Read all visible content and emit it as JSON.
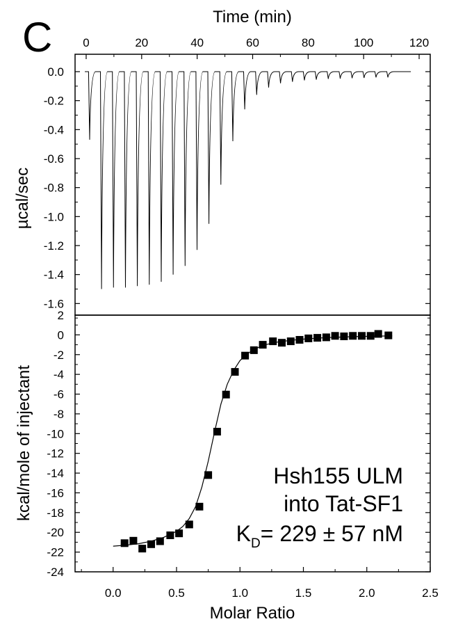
{
  "panel_label": "C",
  "chart_data": [
    {
      "type": "line",
      "panel": "top",
      "title": "",
      "xlabel": "Time (min)",
      "ylabel": "µcal/sec",
      "xlim": [
        -4,
        124
      ],
      "ylim": [
        -1.68,
        0.12
      ],
      "x_ticks": [
        0,
        20,
        40,
        60,
        80,
        100,
        120
      ],
      "y_ticks": [
        0.0,
        -0.2,
        -0.4,
        -0.6,
        -0.8,
        -1.0,
        -1.2,
        -1.4,
        -1.6
      ],
      "y_tick_labels": [
        "0.0",
        "-0.2",
        "-0.4",
        "-0.6",
        "-0.8",
        "-1.0",
        "-1.2",
        "-1.4",
        "-1.6"
      ],
      "grid": false,
      "baseline": 0.0,
      "trace_start": -0.5,
      "trace_end": 117,
      "injection_times": [
        1,
        5.3,
        9.6,
        13.9,
        18.2,
        22.5,
        26.8,
        31.1,
        35.4,
        39.7,
        44,
        48.3,
        52.6,
        56.9,
        61.2,
        65.5,
        69.8,
        74.1,
        78.4,
        82.7,
        87,
        91.3,
        95.6,
        99.9,
        104.2,
        108.5
      ],
      "peak_values": [
        -0.47,
        -1.5,
        -1.49,
        -1.49,
        -1.48,
        -1.47,
        -1.45,
        -1.4,
        -1.34,
        -1.23,
        -1.05,
        -0.78,
        -0.48,
        -0.26,
        -0.16,
        -0.11,
        -0.08,
        -0.07,
        -0.06,
        -0.055,
        -0.05,
        -0.048,
        -0.045,
        -0.043,
        -0.04,
        -0.04
      ]
    },
    {
      "type": "scatter",
      "panel": "bottom",
      "title": "",
      "xlabel": "Molar Ratio",
      "ylabel": "kcal/mole of injectant",
      "xlim": [
        -0.3,
        2.5
      ],
      "ylim": [
        -24,
        2
      ],
      "x_ticks": [
        0.0,
        0.5,
        1.0,
        1.5,
        2.0,
        2.5
      ],
      "x_tick_labels": [
        "0.0",
        "0.5",
        "1.0",
        "1.5",
        "2.0",
        "2.5"
      ],
      "y_ticks": [
        2,
        0,
        -2,
        -4,
        -6,
        -8,
        -10,
        -12,
        -14,
        -16,
        -18,
        -20,
        -22,
        -24
      ],
      "y_tick_labels": [
        "2",
        "0",
        "-2",
        "-4",
        "-6",
        "-8",
        "-10",
        "-12",
        "-14",
        "-16",
        "-18",
        "-20",
        "-22",
        "-24"
      ],
      "grid": false,
      "x": [
        0.09,
        0.16,
        0.23,
        0.3,
        0.37,
        0.45,
        0.52,
        0.6,
        0.68,
        0.75,
        0.82,
        0.89,
        0.96,
        1.04,
        1.11,
        1.18,
        1.26,
        1.33,
        1.4,
        1.47,
        1.54,
        1.61,
        1.68,
        1.75,
        1.82,
        1.89,
        1.96,
        2.03,
        2.09,
        2.17
      ],
      "y": [
        -21.1,
        -20.85,
        -21.65,
        -21.2,
        -20.9,
        -20.3,
        -20.1,
        -19.2,
        -17.4,
        -14.2,
        -9.8,
        -6.05,
        -3.75,
        -2.1,
        -1.55,
        -1.0,
        -0.65,
        -0.8,
        -0.65,
        -0.5,
        -0.35,
        -0.3,
        -0.25,
        -0.1,
        -0.15,
        -0.1,
        -0.1,
        -0.1,
        0.1,
        -0.05
      ],
      "fit_x": [
        0.0,
        0.1,
        0.2,
        0.3,
        0.4,
        0.5,
        0.55,
        0.6,
        0.65,
        0.7,
        0.75,
        0.8,
        0.85,
        0.9,
        0.95,
        1.0,
        1.05,
        1.1,
        1.15,
        1.2,
        1.3,
        1.4,
        1.5,
        1.6,
        1.7,
        1.8,
        1.9,
        2.0,
        2.1,
        2.2
      ],
      "fit_y": [
        -21.4,
        -21.3,
        -21.15,
        -20.9,
        -20.5,
        -19.9,
        -19.4,
        -18.6,
        -17.4,
        -15.4,
        -12.8,
        -9.8,
        -7.0,
        -5.0,
        -3.6,
        -2.6,
        -2.0,
        -1.55,
        -1.25,
        -1.0,
        -0.72,
        -0.55,
        -0.43,
        -0.34,
        -0.27,
        -0.22,
        -0.18,
        -0.15,
        -0.12,
        -0.1
      ],
      "annotation": {
        "line1": "Hsh155 ULM",
        "line2": "into Tat-SF1",
        "kd_symbol": "K",
        "kd_subscript": "D",
        "kd_text": "= 229 ± 57 nM"
      }
    }
  ]
}
